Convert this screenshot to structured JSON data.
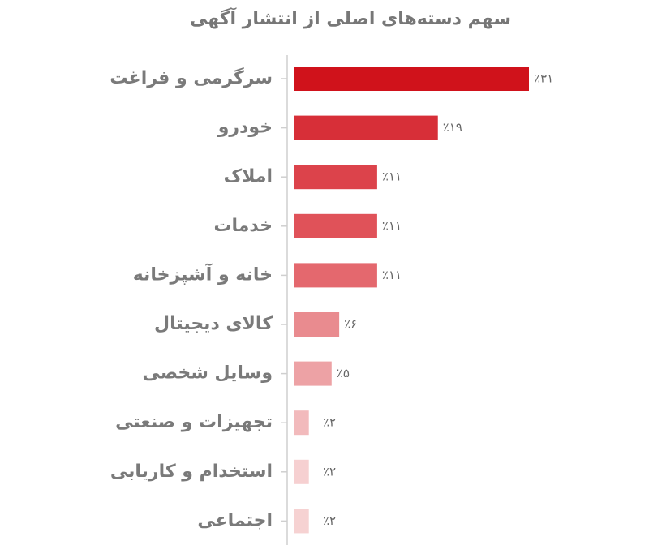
{
  "chart_data": {
    "type": "hbar",
    "title": "سهم دسته‌های اصلی از انتشار آگهی",
    "categories": [
      "سرگرمی و فراغت",
      "خودرو",
      "املاک",
      "خدمات",
      "خانه و آشپزخانه",
      "کالای دیجیتال",
      "وسایل شخصی",
      "تجهیزات و صنعتی",
      "استخدام و کاریابی",
      "اجتماعی"
    ],
    "values": [
      31,
      19,
      11,
      11,
      11,
      6,
      5,
      2,
      2,
      2
    ],
    "value_labels": [
      "٪۳۱",
      "٪۱۹",
      "٪۱۱",
      "٪۱۱",
      "٪۱۱",
      "٪۶",
      "٪۵",
      "٪۲",
      "٪۲",
      "٪۲"
    ],
    "colors": [
      "#d0121b",
      "#d72f38",
      "#dc434b",
      "#e05259",
      "#e4686e",
      "#e98b8f",
      "#eda2a5",
      "#f2babc",
      "#f6d0d1",
      "#f6d2d2"
    ]
  }
}
